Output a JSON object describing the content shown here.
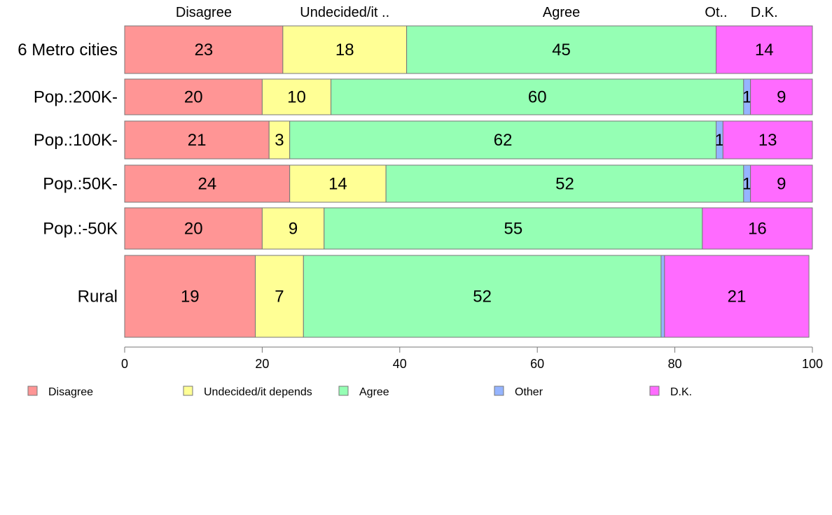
{
  "chart_data": {
    "type": "bar",
    "orientation": "horizontal",
    "stacked": true,
    "categories": [
      "6 Metro cities",
      "Pop.:200K-",
      "Pop.:100K-",
      "Pop.:50K-",
      "Pop.:-50K",
      "Rural"
    ],
    "series": [
      {
        "name": "Disagree",
        "values": [
          23,
          20,
          21,
          24,
          20,
          19
        ]
      },
      {
        "name": "Undecided/it depends",
        "values": [
          18,
          10,
          3,
          14,
          9,
          7
        ]
      },
      {
        "name": "Agree",
        "values": [
          45,
          60,
          62,
          52,
          55,
          52
        ]
      },
      {
        "name": "Other",
        "values": [
          0,
          1,
          1,
          1,
          0,
          0.5
        ]
      },
      {
        "name": "D.K.",
        "values": [
          14,
          9,
          13,
          9,
          16,
          21
        ]
      }
    ],
    "data_labels": [
      [
        "23",
        "18",
        "45",
        "",
        "14"
      ],
      [
        "20",
        "10",
        "60",
        "1",
        "9"
      ],
      [
        "21",
        "3",
        "62",
        "1",
        "13"
      ],
      [
        "24",
        "14",
        "52",
        "1",
        "9"
      ],
      [
        "20",
        "9",
        "55",
        "",
        "16"
      ],
      [
        "19",
        "7",
        "52",
        "",
        "21"
      ]
    ],
    "top_labels": [
      "Disagree",
      "Undecided/it ..",
      "Agree",
      "Ot..",
      "D.K."
    ],
    "colors": [
      "#FF9595",
      "#FFFF95",
      "#95FFB4",
      "#95B4FF",
      "#FF6BFF"
    ],
    "xlim": [
      0,
      100
    ],
    "xticks": [
      0,
      20,
      40,
      60,
      80,
      100
    ],
    "legend": {
      "position": "bottom",
      "entries": [
        "Disagree",
        "Undecided/it depends",
        "Agree",
        "Other",
        "D.K."
      ]
    },
    "title": "",
    "xlabel": "",
    "ylabel": "",
    "grid": false
  }
}
